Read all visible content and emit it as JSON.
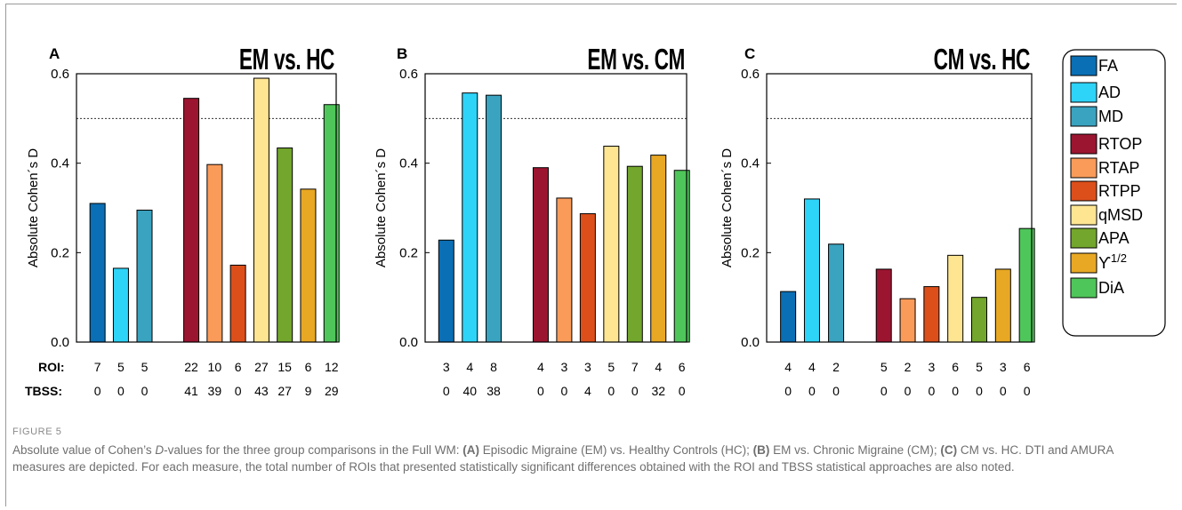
{
  "figure": {
    "label": "FIGURE 5",
    "caption_segments": [
      {
        "text": "Absolute value of Cohen’s ",
        "style": "normal"
      },
      {
        "text": "D",
        "style": "italic"
      },
      {
        "text": "-values for the three group comparisons in the Full WM: ",
        "style": "normal"
      },
      {
        "text": "(A)",
        "style": "bold"
      },
      {
        "text": " Episodic Migraine (EM) vs. Healthy Controls (HC); ",
        "style": "normal"
      },
      {
        "text": "(B)",
        "style": "bold"
      },
      {
        "text": " EM vs. Chronic Migraine (CM); ",
        "style": "normal"
      },
      {
        "text": "(C)",
        "style": "bold"
      },
      {
        "text": " CM vs. HC. DTI and AMURA measures are depicted. For each measure, the total number of ROIs that presented statistically significant differences obtained with the ROI and TBSS statistical approaches are also noted.",
        "style": "normal"
      }
    ]
  },
  "row_labels": {
    "roi": "ROI:",
    "tbss": "TBSS:"
  },
  "chart_data": [
    {
      "type": "bar",
      "panel": "A",
      "title": "EM vs. HC",
      "ylabel": "Absolute Cohen´s D",
      "ylim": [
        0,
        0.6
      ],
      "yticks": [
        "0.0",
        "0.2",
        "0.4",
        "0.6"
      ],
      "reference_line": 0.5,
      "categories": [
        "FA",
        "AD",
        "MD",
        "RTOP",
        "RTAP",
        "RTPP",
        "qMSD",
        "APA",
        "ϒ1/2",
        "DiA"
      ],
      "values": [
        0.31,
        0.165,
        0.295,
        0.545,
        0.397,
        0.172,
        0.59,
        0.434,
        0.342,
        0.531
      ],
      "roi": [
        "7",
        "5",
        "5",
        "22",
        "10",
        "6",
        "27",
        "15",
        "6",
        "12"
      ],
      "tbss": [
        "0",
        "0",
        "0",
        "41",
        "39",
        "0",
        "43",
        "27",
        "9",
        "29"
      ]
    },
    {
      "type": "bar",
      "panel": "B",
      "title": "EM vs. CM",
      "ylabel": "Absolute Cohen´s D",
      "ylim": [
        0,
        0.6
      ],
      "yticks": [
        "0.0",
        "0.2",
        "0.4",
        "0.6"
      ],
      "reference_line": 0.5,
      "categories": [
        "FA",
        "AD",
        "MD",
        "RTOP",
        "RTAP",
        "RTPP",
        "qMSD",
        "APA",
        "ϒ1/2",
        "DiA"
      ],
      "values": [
        0.228,
        0.557,
        0.552,
        0.39,
        0.322,
        0.287,
        0.438,
        0.393,
        0.418,
        0.384
      ],
      "roi": [
        "3",
        "4",
        "8",
        "4",
        "3",
        "3",
        "5",
        "7",
        "4",
        "6"
      ],
      "tbss": [
        "0",
        "40",
        "38",
        "0",
        "0",
        "4",
        "0",
        "0",
        "32",
        "0"
      ]
    },
    {
      "type": "bar",
      "panel": "C",
      "title": "CM vs. HC",
      "ylabel": "Absolute Cohen´s D",
      "ylim": [
        0,
        0.6
      ],
      "yticks": [
        "0.0",
        "0.2",
        "0.4",
        "0.6"
      ],
      "reference_line": 0.5,
      "categories": [
        "FA",
        "AD",
        "MD",
        "RTOP",
        "RTAP",
        "RTPP",
        "qMSD",
        "APA",
        "ϒ1/2",
        "DiA"
      ],
      "values": [
        0.113,
        0.32,
        0.219,
        0.163,
        0.097,
        0.124,
        0.194,
        0.1,
        0.163,
        0.254
      ],
      "roi": [
        "4",
        "4",
        "2",
        "5",
        "2",
        "3",
        "6",
        "5",
        "3",
        "6"
      ],
      "tbss": [
        "0",
        "0",
        "0",
        "0",
        "0",
        "0",
        "0",
        "0",
        "0",
        "0"
      ]
    }
  ],
  "legend": {
    "placement": "right",
    "items": [
      {
        "label": "FA",
        "color": "#0a6fb4"
      },
      {
        "label": "AD",
        "color": "#2ed3f8"
      },
      {
        "label": "MD",
        "color": "#3aa3c0"
      },
      {
        "label": "RTOP",
        "color": "#9c1530"
      },
      {
        "label": "RTAP",
        "color": "#fa9b5a"
      },
      {
        "label": "RTPP",
        "color": "#dc4f1b"
      },
      {
        "label": "qMSD",
        "color": "#fde592"
      },
      {
        "label": "APA",
        "color": "#73a62c"
      },
      {
        "label": "ϒ",
        "sup": "1/2",
        "color": "#e8a824"
      },
      {
        "label": "DiA",
        "color": "#4fc65a"
      }
    ]
  }
}
